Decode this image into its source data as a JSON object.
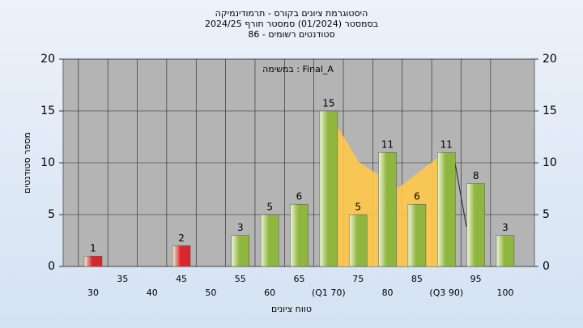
{
  "chart_data": {
    "type": "bar",
    "title": "היסטוגרמת ציונים בקורס - תרמודינמיקה",
    "subtitle": "בסמסטר (01/2024) סמסטר חורף 2024/25",
    "subtitle2": "סטודנטים רשומים - 86",
    "annotation": "במשימה : Final_A",
    "xlabel": "טווח ציונים",
    "ylabel": "מספר סטודנטים",
    "categories": [
      "30",
      "35",
      "40",
      "45",
      "50",
      "55",
      "60",
      "65",
      "(Q1 70)",
      "75",
      "80",
      "85",
      "(Q3 90)",
      "95",
      "100"
    ],
    "values": [
      1,
      0,
      0,
      2,
      0,
      3,
      5,
      6,
      15,
      5,
      11,
      6,
      11,
      8,
      3
    ],
    "colors": [
      "#d9262c",
      "#d9262c",
      "#d9262c",
      "#d9262c",
      "#8fb63f",
      "#8fb63f",
      "#8fb63f",
      "#8fb63f",
      "#8fb63f",
      "#8fb63f",
      "#8fb63f",
      "#8fb63f",
      "#8fb63f",
      "#8fb63f",
      "#8fb63f"
    ],
    "ylim": [
      0,
      20
    ],
    "yticks": [
      0,
      5,
      10,
      15,
      20
    ],
    "grid": true
  }
}
